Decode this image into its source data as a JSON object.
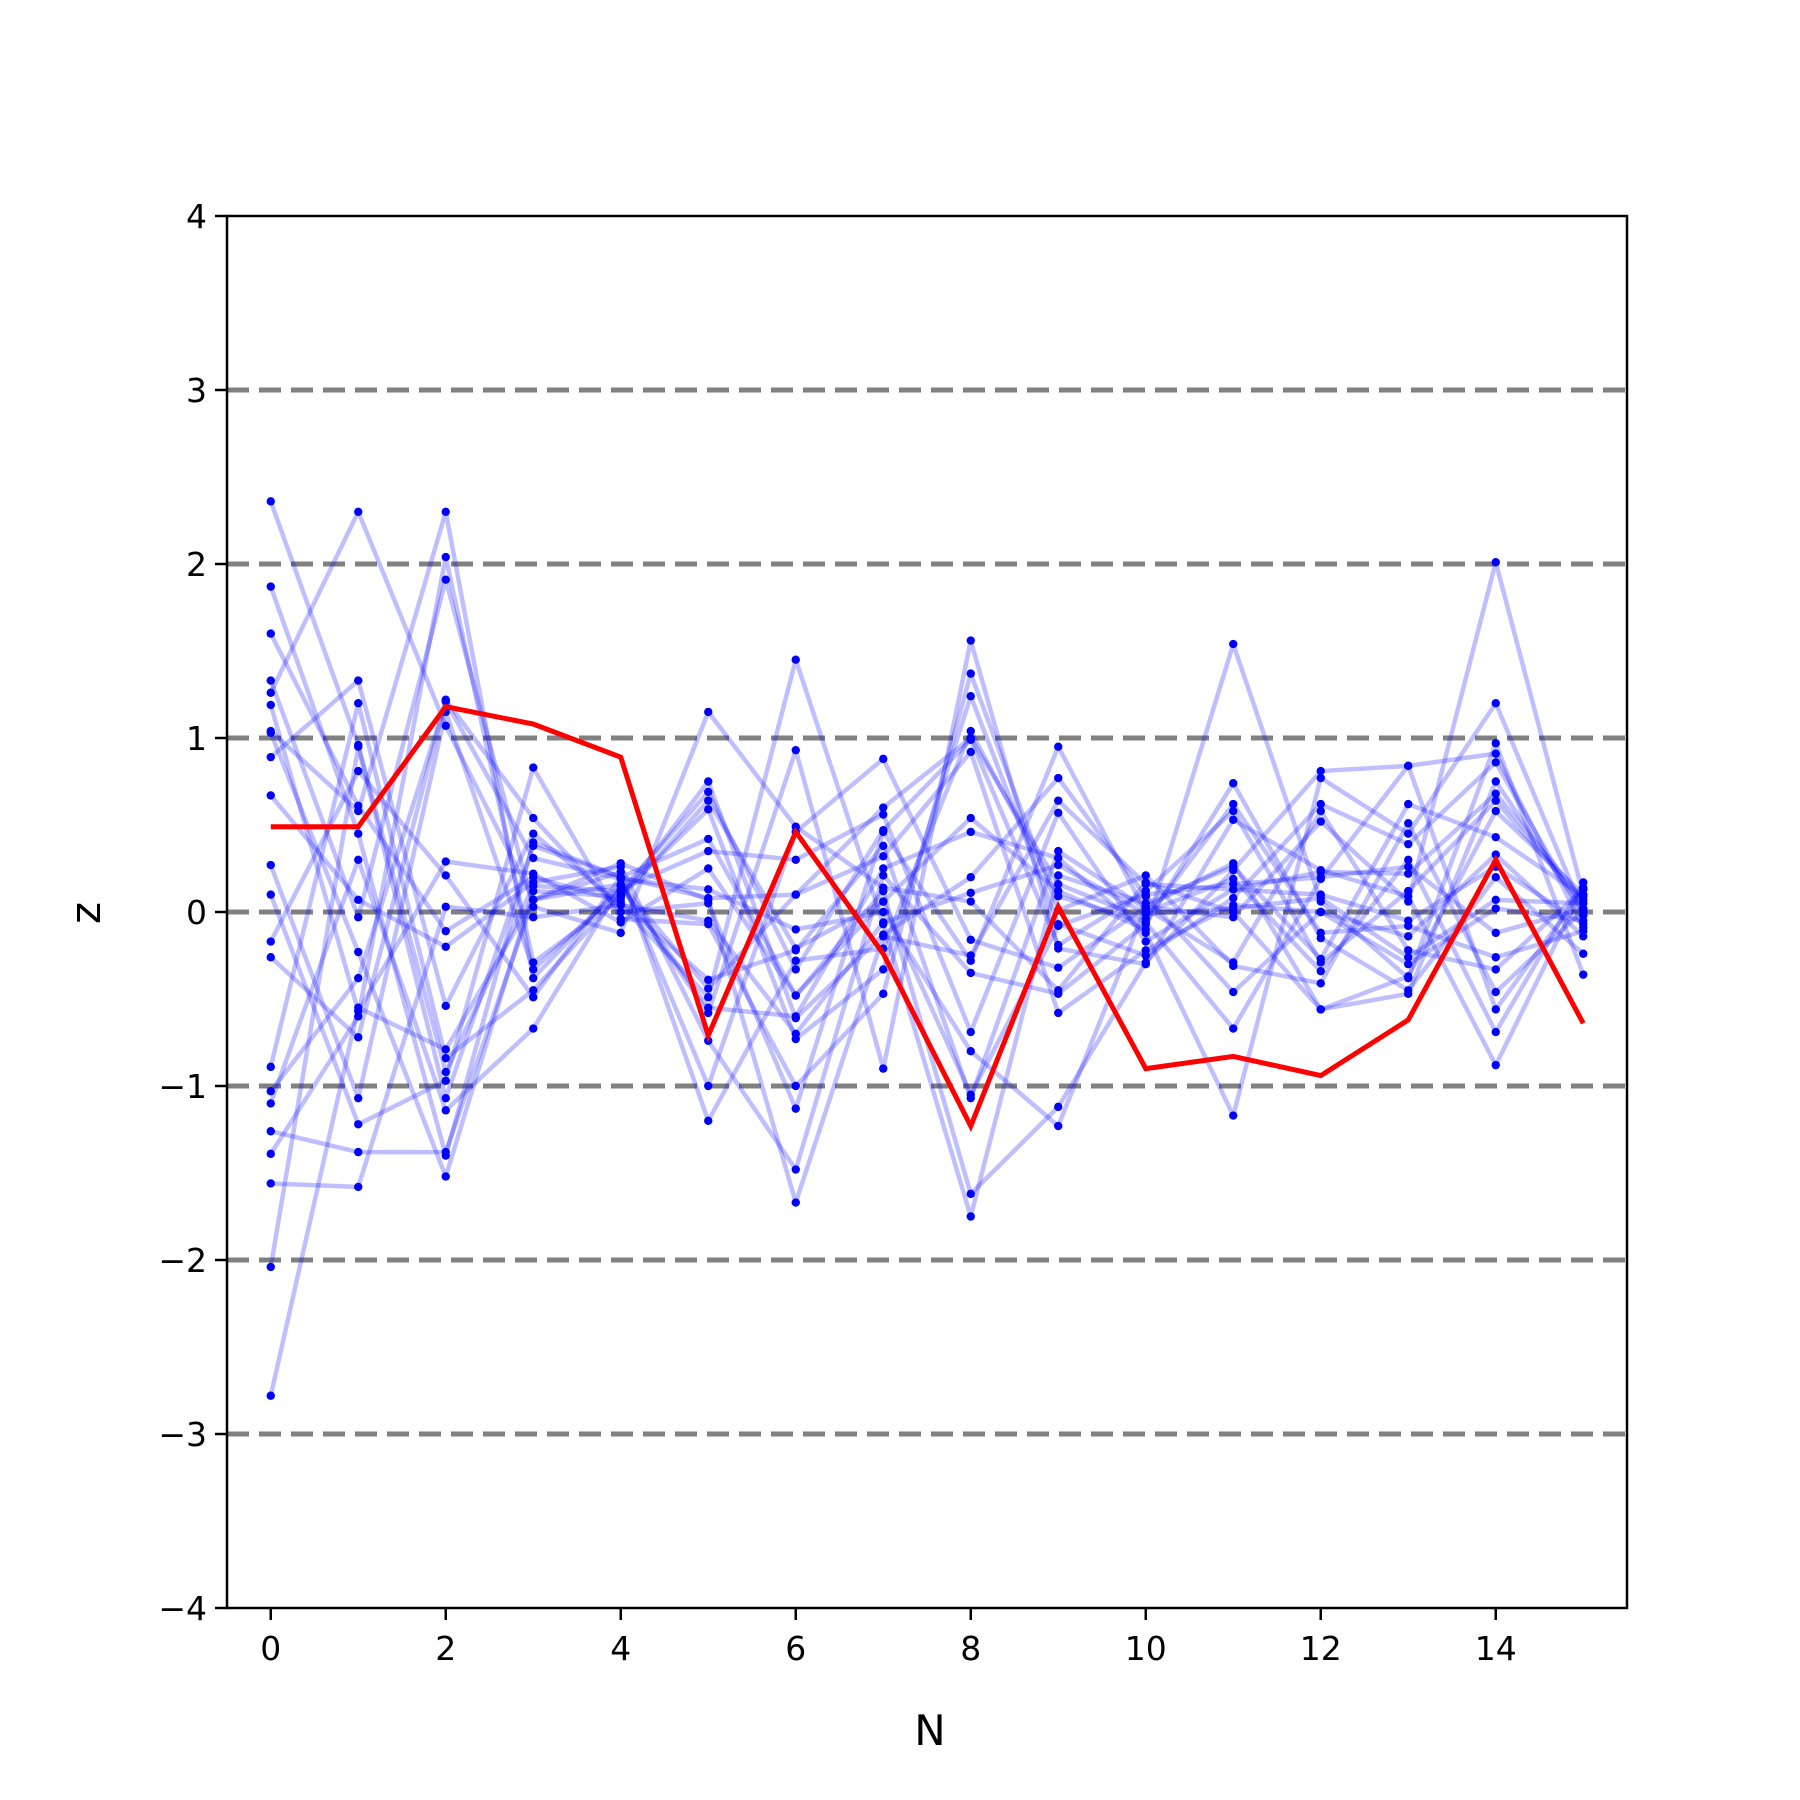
{
  "chart_data": {
    "type": "line",
    "xlabel": "N",
    "ylabel": "z",
    "xlim": [
      -0.5,
      15.5
    ],
    "ylim": [
      -4,
      4
    ],
    "x_ticks": [
      0,
      2,
      4,
      6,
      8,
      10,
      12,
      14
    ],
    "y_ticks": [
      -4,
      -3,
      -2,
      -1,
      0,
      1,
      2,
      3,
      4
    ],
    "y_tick_labels": [
      "−4",
      "−3",
      "−2",
      "−1",
      "0",
      "1",
      "2",
      "3",
      "4"
    ],
    "reference_lines": [
      -3,
      -2,
      -1,
      0,
      1,
      2,
      3
    ],
    "colors": {
      "samples": "#0000ff",
      "highlight": "#ff0000",
      "reference": "#808080",
      "axes": "#000000"
    },
    "x": [
      0,
      1,
      2,
      3,
      4,
      5,
      6,
      7,
      8,
      9,
      10,
      11,
      12,
      13,
      14,
      15
    ],
    "highlight": [
      0.49,
      0.49,
      1.18,
      1.08,
      0.89,
      -0.71,
      0.46,
      -0.24,
      -1.23,
      0.03,
      -0.9,
      -0.83,
      -0.94,
      -0.62,
      0.3,
      -0.64
    ],
    "samples": [
      [
        2.36,
        0.96,
        -0.92,
        0.15,
        0.12,
        0.69,
        -0.33,
        0.47,
        0.99,
        -0.19,
        0.12,
        0.58,
        -0.29,
        0.12,
        0.64,
        0.05
      ],
      [
        1.87,
        0.45,
        -1.4,
        0.4,
        0.2,
        0.42,
        -0.48,
        0.12,
        -1.62,
        -1.12,
        -0.29,
        0.24,
        0.81,
        0.84,
        0.91,
        -0.09
      ],
      [
        1.6,
        0.61,
        -0.11,
        0.2,
        0.06,
        -0.39,
        -0.22,
        0.38,
        -1.07,
        0.35,
        0.02,
        -0.29,
        0.58,
        -0.22,
        -0.33,
        0.13
      ],
      [
        1.33,
        -0.03,
        1.91,
        0.03,
        -0.12,
        1.15,
        0.49,
        0.14,
        0.06,
        -0.45,
        0.17,
        0.0,
        -0.56,
        -0.47,
        0.75,
        0.0
      ],
      [
        1.26,
        2.3,
        1.07,
        0.07,
        0.23,
        -1.2,
        -0.28,
        -0.21,
        1.04,
        0.09,
        -0.06,
        -0.67,
        0.19,
        0.84,
        -0.56,
        0.13
      ],
      [
        1.19,
        -0.57,
        0.29,
        0.22,
        -0.06,
        0.25,
        -0.48,
        0.06,
        0.54,
        0.12,
        -0.1,
        1.54,
        0.06,
        -0.38,
        0.97,
        -0.36
      ],
      [
        1.04,
        0.58,
        2.3,
        -0.38,
        0.15,
        -0.58,
        0.93,
        -0.9,
        1.56,
        -0.21,
        -0.3,
        0.53,
        0.24,
        0.09,
        -0.88,
        0.14
      ],
      [
        1.03,
        -0.23,
        -1.52,
        0.12,
        0.09,
        0.75,
        -0.61,
        -0.13,
        0.2,
        0.77,
        0.09,
        -0.46,
        0.0,
        -0.3,
        0.02,
        -0.05
      ],
      [
        0.89,
        1.33,
        -0.54,
        0.45,
        0.04,
        -0.49,
        1.45,
        -0.07,
        -1.75,
        0.21,
        0.05,
        0.26,
        -0.27,
        0.62,
        0.43,
        0.09
      ],
      [
        0.67,
        0.07,
        -0.2,
        0.17,
        0.26,
        -0.74,
        -1.48,
        0.21,
        -0.35,
        -0.47,
        -0.07,
        0.74,
        -0.15,
        -0.45,
        0.2,
        -0.24
      ],
      [
        0.27,
        -1.07,
        1.15,
        -0.33,
        0.13,
        0.35,
        0.3,
        0.56,
        -0.69,
        0.57,
        -0.17,
        0.13,
        0.23,
        0.22,
        0.68,
        0.07
      ],
      [
        0.1,
        -1.22,
        -0.97,
        0.83,
        -0.04,
        -0.07,
        -1.0,
        -0.47,
        1.37,
        0.01,
        0.21,
        -0.31,
        -0.41,
        0.51,
        -0.46,
        0.01
      ],
      [
        -0.17,
        0.81,
        0.21,
        -0.49,
        0.2,
        0.08,
        0.1,
        0.32,
        0.92,
        -0.58,
        -0.22,
        0.04,
        0.0,
        -0.14,
        0.33,
        -0.14
      ],
      [
        -0.26,
        -0.72,
        1.22,
        0.54,
        0.0,
        0.05,
        -1.13,
        0.46,
        -0.28,
        0.95,
        0.0,
        0.19,
        -0.34,
        0.3,
        -0.69,
        0.17
      ],
      [
        -0.89,
        1.2,
        -0.84,
        -0.45,
        0.1,
        0.59,
        -0.73,
        -0.33,
        1.24,
        -0.07,
        -0.25,
        0.08,
        0.62,
        0.39,
        0.86,
        -0.02
      ],
      [
        -1.03,
        -0.38,
        1.21,
        0.31,
        0.19,
        0.13,
        -0.1,
        0.0,
        -0.8,
        -1.23,
        0.03,
        0.28,
        -0.56,
        -0.37,
        0.58,
        0.1
      ],
      [
        -1.1,
        0.3,
        -1.14,
        -0.67,
        0.15,
        -0.55,
        -0.6,
        0.25,
        0.46,
        0.31,
        -0.12,
        -1.17,
        0.77,
        0.45,
        1.2,
        0.0
      ],
      [
        -1.26,
        -1.38,
        -1.38,
        0.07,
        0.16,
        -0.44,
        0.1,
        0.6,
        1.0,
        0.16,
        -0.04,
        0.62,
        -0.12,
        -0.08,
        -0.26,
        -0.11
      ],
      [
        -1.39,
        -0.6,
        2.04,
        -0.29,
        0.08,
        0.64,
        -0.21,
        0.06,
        -1.05,
        -0.08,
        0.1,
        0.16,
        0.2,
        0.26,
        -0.12,
        0.02
      ],
      [
        -1.56,
        -1.58,
        0.03,
        -0.03,
        0.04,
        -0.05,
        -0.7,
        -0.06,
        0.11,
        0.27,
        -0.01,
        0.02,
        0.08,
        -0.26,
        0.07,
        0.05
      ],
      [
        -2.04,
        0.95,
        -1.07,
        0.38,
        0.2,
        -1.0,
        0.46,
        0.88,
        -0.16,
        -0.32,
        0.03,
        -0.03,
        0.52,
        0.06,
        2.01,
        0.1
      ],
      [
        -2.78,
        -0.55,
        -0.79,
        0.07,
        0.28,
        0.07,
        -1.67,
        -0.14,
        -0.25,
        0.64,
        0.16,
        0.13,
        0.1,
        -0.05,
        0.26,
        -0.07
      ]
    ]
  }
}
